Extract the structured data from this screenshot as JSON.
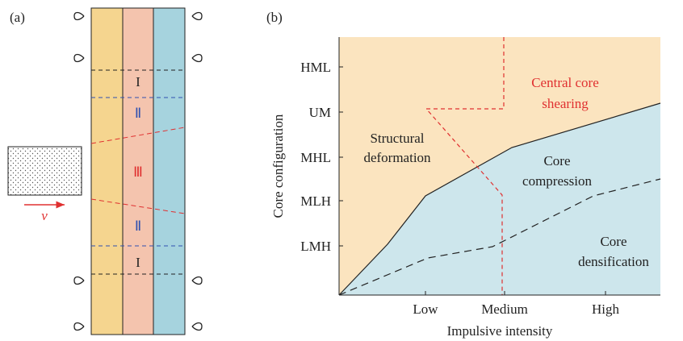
{
  "panel_a": {
    "label": "(a)",
    "zones": [
      "I",
      "Ⅱ",
      "Ⅲ",
      "Ⅱ",
      "I"
    ],
    "velocity": "v"
  },
  "panel_b": {
    "label": "(b)",
    "x_label": "Impulsive intensity",
    "y_label": "Core configuration",
    "x_categories": [
      "Low",
      "Medium",
      "High"
    ],
    "y_categories": [
      "LMH",
      "MLH",
      "MHL",
      "UM",
      "HML"
    ],
    "regions": [
      {
        "lines": [
          "Central core",
          "shearing"
        ]
      },
      {
        "lines": [
          "Structural",
          "deformation"
        ]
      },
      {
        "lines": [
          "Core",
          "compression"
        ]
      },
      {
        "lines": [
          "Core",
          "densification"
        ]
      }
    ]
  }
}
